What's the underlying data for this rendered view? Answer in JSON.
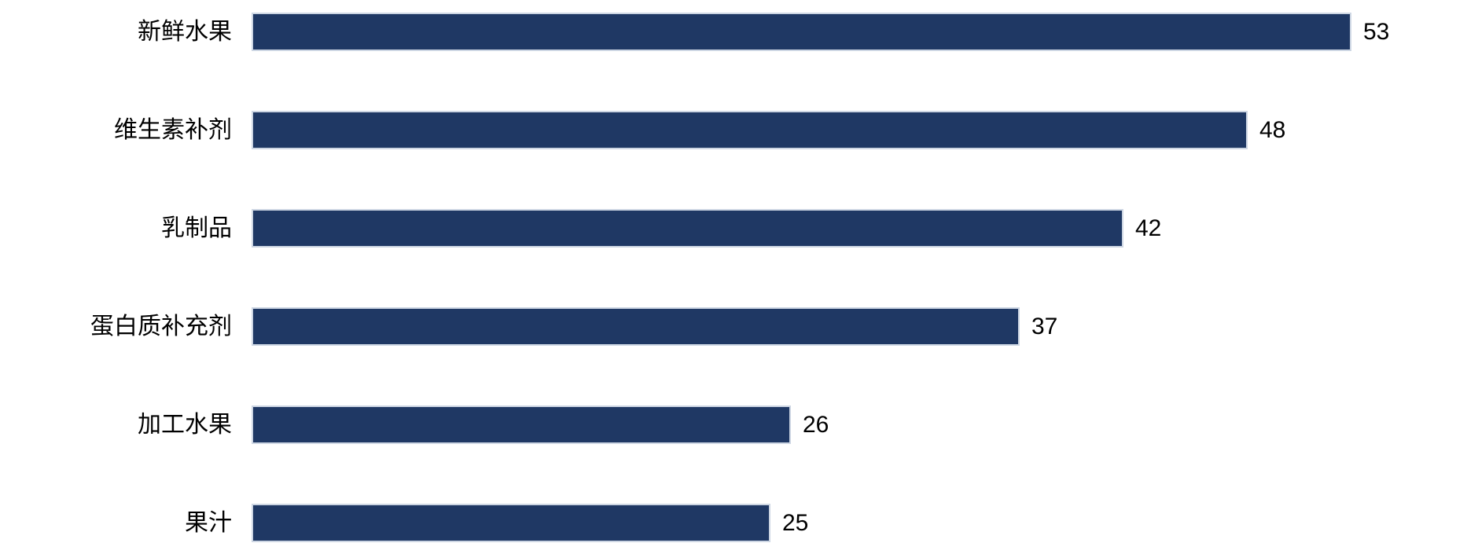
{
  "chart_data": {
    "type": "bar",
    "orientation": "horizontal",
    "title": "",
    "xlabel": "",
    "ylabel": "",
    "categories": [
      "新鲜水果",
      "维生素补剂",
      "乳制品",
      "蛋白质补充剂",
      "加工水果",
      "果汁"
    ],
    "values": [
      53,
      48,
      42,
      37,
      26,
      25
    ],
    "value_labels_shown": true,
    "xlim": [
      0,
      58
    ],
    "grid": false,
    "legend": false,
    "bar_color": "#1F3864",
    "bar_border_color": "#CDD6E3",
    "label_color": "#000000",
    "background_color": "#FFFFFF"
  }
}
